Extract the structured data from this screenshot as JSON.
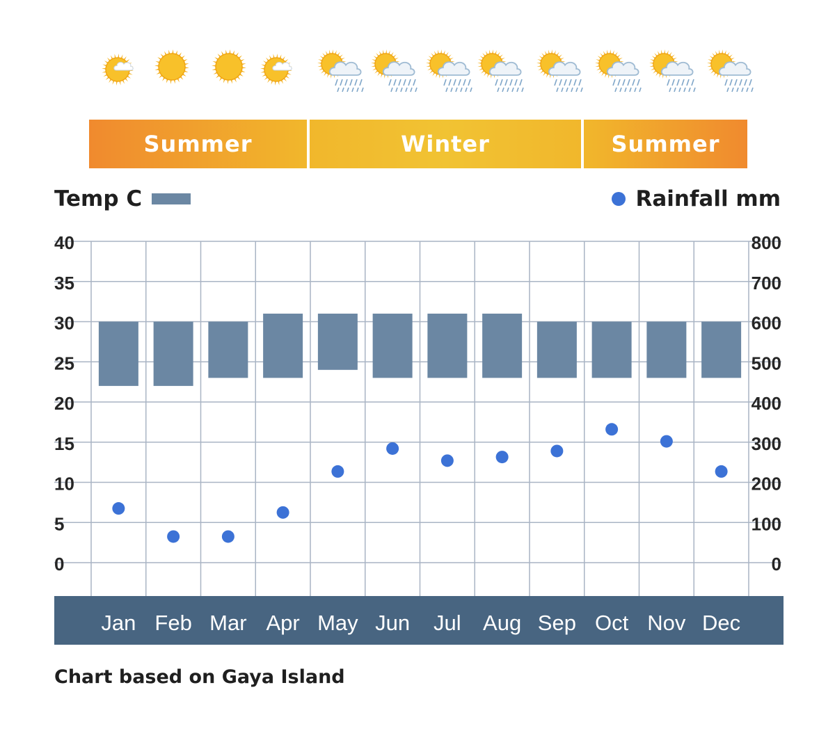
{
  "weather_icons": [
    "sun-cloud",
    "sun",
    "sun",
    "sun-cloud",
    "sun-rain",
    "sun-rain",
    "sun-rain",
    "sun-rain",
    "sun-rain",
    "sun-rain",
    "sun-rain",
    "sun-rain"
  ],
  "seasons": [
    {
      "label": "Summer",
      "from": "Jan",
      "to": "Apr"
    },
    {
      "label": "Winter",
      "from": "May",
      "to": "Sep"
    },
    {
      "label": "Summer",
      "from": "Oct",
      "to": "Dec"
    }
  ],
  "legend": {
    "temp_label": "Temp C",
    "rain_label": "Rainfall mm"
  },
  "colors": {
    "temp_bar": "#6b87a3",
    "rain_dot": "#3c72d6",
    "month_bar": "#486581",
    "grid": "#a9b4c4",
    "season_orange": "#f08a2e",
    "season_yellow": "#f1b72c"
  },
  "chart_data": {
    "type": "bar",
    "categories": [
      "Jan",
      "Feb",
      "Mar",
      "Apr",
      "May",
      "Jun",
      "Jul",
      "Aug",
      "Sep",
      "Oct",
      "Nov",
      "Dec"
    ],
    "series": [
      {
        "name": "Temp C",
        "kind": "range-bar",
        "axis": "left",
        "low": [
          22,
          22,
          23,
          23,
          24,
          23,
          23,
          23,
          23,
          23,
          23,
          23
        ],
        "high": [
          30,
          30,
          30,
          31,
          31,
          31,
          31,
          31,
          30,
          30,
          30,
          30
        ]
      },
      {
        "name": "Rainfall mm",
        "kind": "scatter",
        "axis": "right",
        "values": [
          135,
          65,
          65,
          125,
          227,
          284,
          254,
          263,
          278,
          332,
          302,
          227
        ]
      }
    ],
    "y_left": {
      "ylim": [
        0,
        40
      ],
      "ticks": [
        0,
        5,
        10,
        15,
        20,
        25,
        30,
        35,
        40
      ]
    },
    "y_right": {
      "ylim": [
        0,
        800
      ],
      "ticks": [
        0,
        100,
        200,
        300,
        400,
        500,
        600,
        700,
        800
      ]
    },
    "grid": true,
    "legend_placement": "top"
  },
  "caption": "Chart based on Gaya Island"
}
